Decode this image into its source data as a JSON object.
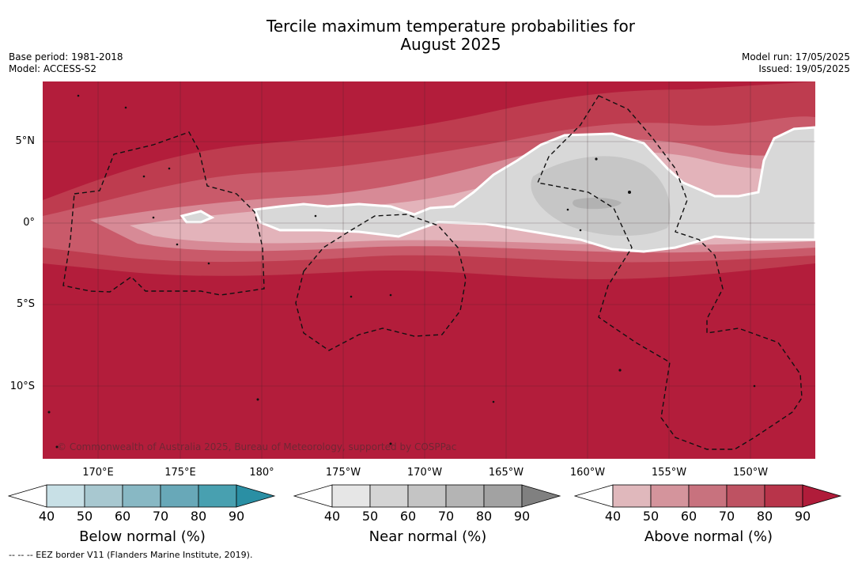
{
  "title_line1": "Tercile maximum temperature probabilities for",
  "title_line2": "August 2025",
  "base_period": "Base period: 1981-2018",
  "model": "Model: ACCESS-S2",
  "model_run": "Model run: 17/05/2025",
  "issued": "Issued: 19/05/2025",
  "lat_labels": [
    "5°N",
    "0°",
    "5°S",
    "10°S"
  ],
  "lon_labels": [
    "170°E",
    "175°E",
    "180°",
    "175°W",
    "170°W",
    "165°W",
    "160°W",
    "155°W",
    "150°W"
  ],
  "copyright": "© Commonwealth of Australia 2025, Bureau of Meteorology, supported by COSPPac",
  "footnote": "--  --  -- EEZ border V11 (Flanders Marine Institute, 2019).",
  "colorbars": [
    {
      "title": "Below normal (%)",
      "ticks": [
        "40",
        "50",
        "60",
        "70",
        "80",
        "90"
      ],
      "colors": [
        "#ffffff",
        "#c8e0e6",
        "#a8c8d0",
        "#88b8c4",
        "#68a8b8",
        "#48a0b0",
        "#2a8fa4"
      ]
    },
    {
      "title": "Near normal (%)",
      "ticks": [
        "40",
        "50",
        "60",
        "70",
        "80",
        "90"
      ],
      "colors": [
        "#ffffff",
        "#e6e6e6",
        "#d4d4d4",
        "#c4c4c4",
        "#b4b4b4",
        "#a2a2a2",
        "#808080"
      ]
    },
    {
      "title": "Above normal (%)",
      "ticks": [
        "40",
        "50",
        "60",
        "70",
        "80",
        "90"
      ],
      "colors": [
        "#ffffff",
        "#e0b8bc",
        "#d4949c",
        "#c8727e",
        "#be5262",
        "#b8344a",
        "#b01c3a"
      ]
    }
  ]
}
